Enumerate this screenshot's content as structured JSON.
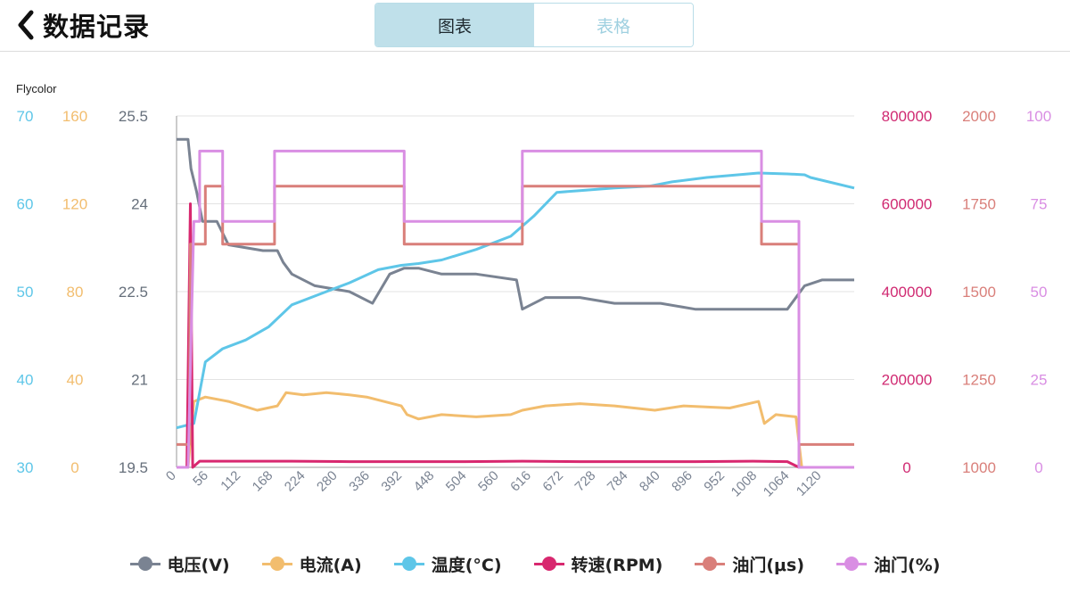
{
  "header": {
    "back_icon": "chevron-left-icon",
    "title": "数据记录",
    "tabs": [
      {
        "label": "图表",
        "active": true
      },
      {
        "label": "表格",
        "active": false
      }
    ]
  },
  "chart_data": {
    "type": "line",
    "brand_label": "Flycolor",
    "x_ticks": [
      "0",
      "56",
      "112",
      "168",
      "224",
      "280",
      "336",
      "392",
      "448",
      "504",
      "560",
      "616",
      "672",
      "728",
      "784",
      "840",
      "896",
      "952",
      "1008",
      "1064",
      "1120"
    ],
    "xlim": [
      0,
      1176
    ],
    "axes": {
      "temp": {
        "color": "#5ec6e8",
        "ticks": [
          "70",
          "60",
          "50",
          "40",
          "30"
        ],
        "range": [
          30,
          70
        ]
      },
      "curr": {
        "color": "#f2bd6e",
        "ticks": [
          "160",
          "120",
          "80",
          "40",
          "0"
        ],
        "range": [
          0,
          160
        ]
      },
      "volt": {
        "color": "#666f7b",
        "ticks": [
          "25.5",
          "24",
          "22.5",
          "21",
          "19.5"
        ],
        "range": [
          19.5,
          25.5
        ]
      },
      "rpm": {
        "color": "#d02a72",
        "ticks": [
          "800000",
          "600000",
          "400000",
          "200000",
          "0"
        ],
        "range": [
          0,
          800000
        ]
      },
      "thr_us": {
        "color": "#d97f7a",
        "ticks": [
          "2000",
          "1750",
          "1500",
          "1250",
          "1000"
        ],
        "range": [
          1000,
          2000
        ]
      },
      "thr_pct": {
        "color": "#d98ee3",
        "ticks": [
          "100",
          "75",
          "50",
          "25",
          "0"
        ],
        "range": [
          0,
          100
        ]
      }
    },
    "series": [
      {
        "name": "电压(V)",
        "axis": "volt",
        "color": "#7a8392",
        "points": [
          [
            0,
            25.1
          ],
          [
            20,
            25.1
          ],
          [
            25,
            24.6
          ],
          [
            35,
            24.2
          ],
          [
            45,
            23.7
          ],
          [
            70,
            23.7
          ],
          [
            90,
            23.3
          ],
          [
            150,
            23.2
          ],
          [
            175,
            23.2
          ],
          [
            185,
            23.0
          ],
          [
            200,
            22.8
          ],
          [
            240,
            22.6
          ],
          [
            300,
            22.5
          ],
          [
            340,
            22.3
          ],
          [
            370,
            22.8
          ],
          [
            395,
            22.9
          ],
          [
            420,
            22.9
          ],
          [
            460,
            22.8
          ],
          [
            520,
            22.8
          ],
          [
            590,
            22.7
          ],
          [
            600,
            22.2
          ],
          [
            640,
            22.4
          ],
          [
            700,
            22.4
          ],
          [
            760,
            22.3
          ],
          [
            840,
            22.3
          ],
          [
            900,
            22.2
          ],
          [
            950,
            22.2
          ],
          [
            990,
            22.2
          ],
          [
            1010,
            22.2
          ],
          [
            1040,
            22.2
          ],
          [
            1060,
            22.2
          ],
          [
            1090,
            22.6
          ],
          [
            1120,
            22.7
          ],
          [
            1176,
            22.7
          ]
        ]
      },
      {
        "name": "电流(A)",
        "axis": "curr",
        "color": "#f2bd6e",
        "points": [
          [
            0,
            0
          ],
          [
            20,
            0
          ],
          [
            30,
            30
          ],
          [
            50,
            32
          ],
          [
            90,
            30
          ],
          [
            140,
            26
          ],
          [
            175,
            28
          ],
          [
            190,
            34
          ],
          [
            220,
            33
          ],
          [
            260,
            34
          ],
          [
            300,
            33
          ],
          [
            330,
            32
          ],
          [
            390,
            28
          ],
          [
            400,
            24
          ],
          [
            420,
            22
          ],
          [
            460,
            24
          ],
          [
            520,
            23
          ],
          [
            580,
            24
          ],
          [
            600,
            26
          ],
          [
            640,
            28
          ],
          [
            700,
            29
          ],
          [
            760,
            28
          ],
          [
            830,
            26
          ],
          [
            880,
            28
          ],
          [
            960,
            27
          ],
          [
            1010,
            30
          ],
          [
            1020,
            20
          ],
          [
            1040,
            24
          ],
          [
            1075,
            23
          ],
          [
            1085,
            0
          ],
          [
            1120,
            0
          ],
          [
            1176,
            0
          ]
        ]
      },
      {
        "name": "温度(°C)",
        "axis": "temp",
        "color": "#5ec6e8",
        "points": [
          [
            0,
            34.5
          ],
          [
            30,
            35
          ],
          [
            50,
            42
          ],
          [
            80,
            43.5
          ],
          [
            120,
            44.5
          ],
          [
            160,
            46
          ],
          [
            200,
            48.5
          ],
          [
            260,
            50
          ],
          [
            300,
            51
          ],
          [
            350,
            52.5
          ],
          [
            390,
            53
          ],
          [
            420,
            53.2
          ],
          [
            460,
            53.6
          ],
          [
            520,
            54.8
          ],
          [
            580,
            56.3
          ],
          [
            620,
            58.6
          ],
          [
            660,
            61.3
          ],
          [
            700,
            61.5
          ],
          [
            760,
            61.8
          ],
          [
            820,
            62.0
          ],
          [
            860,
            62.5
          ],
          [
            920,
            63.0
          ],
          [
            1010,
            63.5
          ],
          [
            1060,
            63.4
          ],
          [
            1090,
            63.3
          ],
          [
            1100,
            63.0
          ],
          [
            1176,
            61.8
          ]
        ]
      },
      {
        "name": "转速(RPM)",
        "axis": "rpm",
        "color": "#d8286f",
        "points": [
          [
            0,
            0
          ],
          [
            18,
            0
          ],
          [
            24,
            600000
          ],
          [
            28,
            0
          ],
          [
            40,
            14000
          ],
          [
            100,
            14000
          ],
          [
            200,
            14000
          ],
          [
            300,
            13000
          ],
          [
            400,
            13000
          ],
          [
            500,
            13000
          ],
          [
            600,
            14000
          ],
          [
            700,
            13000
          ],
          [
            800,
            13000
          ],
          [
            900,
            13000
          ],
          [
            1000,
            14000
          ],
          [
            1060,
            13000
          ],
          [
            1080,
            0
          ],
          [
            1176,
            0
          ]
        ]
      },
      {
        "name": "油门(μs)",
        "axis": "thr_us",
        "color": "#d97f7a",
        "points": [
          [
            0,
            1065
          ],
          [
            22,
            1065
          ],
          [
            24,
            1635
          ],
          [
            50,
            1635
          ],
          [
            50,
            1800
          ],
          [
            80,
            1800
          ],
          [
            80,
            1635
          ],
          [
            170,
            1635
          ],
          [
            170,
            1800
          ],
          [
            395,
            1800
          ],
          [
            395,
            1635
          ],
          [
            600,
            1635
          ],
          [
            600,
            1800
          ],
          [
            1015,
            1800
          ],
          [
            1015,
            1635
          ],
          [
            1080,
            1635
          ],
          [
            1080,
            1065
          ],
          [
            1176,
            1065
          ]
        ]
      },
      {
        "name": "油门(%)",
        "axis": "thr_pct",
        "color": "#d98ee3",
        "points": [
          [
            0,
            0
          ],
          [
            20,
            0
          ],
          [
            30,
            70
          ],
          [
            40,
            70
          ],
          [
            40,
            90
          ],
          [
            80,
            90
          ],
          [
            80,
            70
          ],
          [
            170,
            70
          ],
          [
            170,
            90
          ],
          [
            395,
            90
          ],
          [
            395,
            70
          ],
          [
            600,
            70
          ],
          [
            600,
            90
          ],
          [
            1015,
            90
          ],
          [
            1015,
            70
          ],
          [
            1080,
            70
          ],
          [
            1080,
            0
          ],
          [
            1176,
            0
          ]
        ]
      }
    ]
  }
}
